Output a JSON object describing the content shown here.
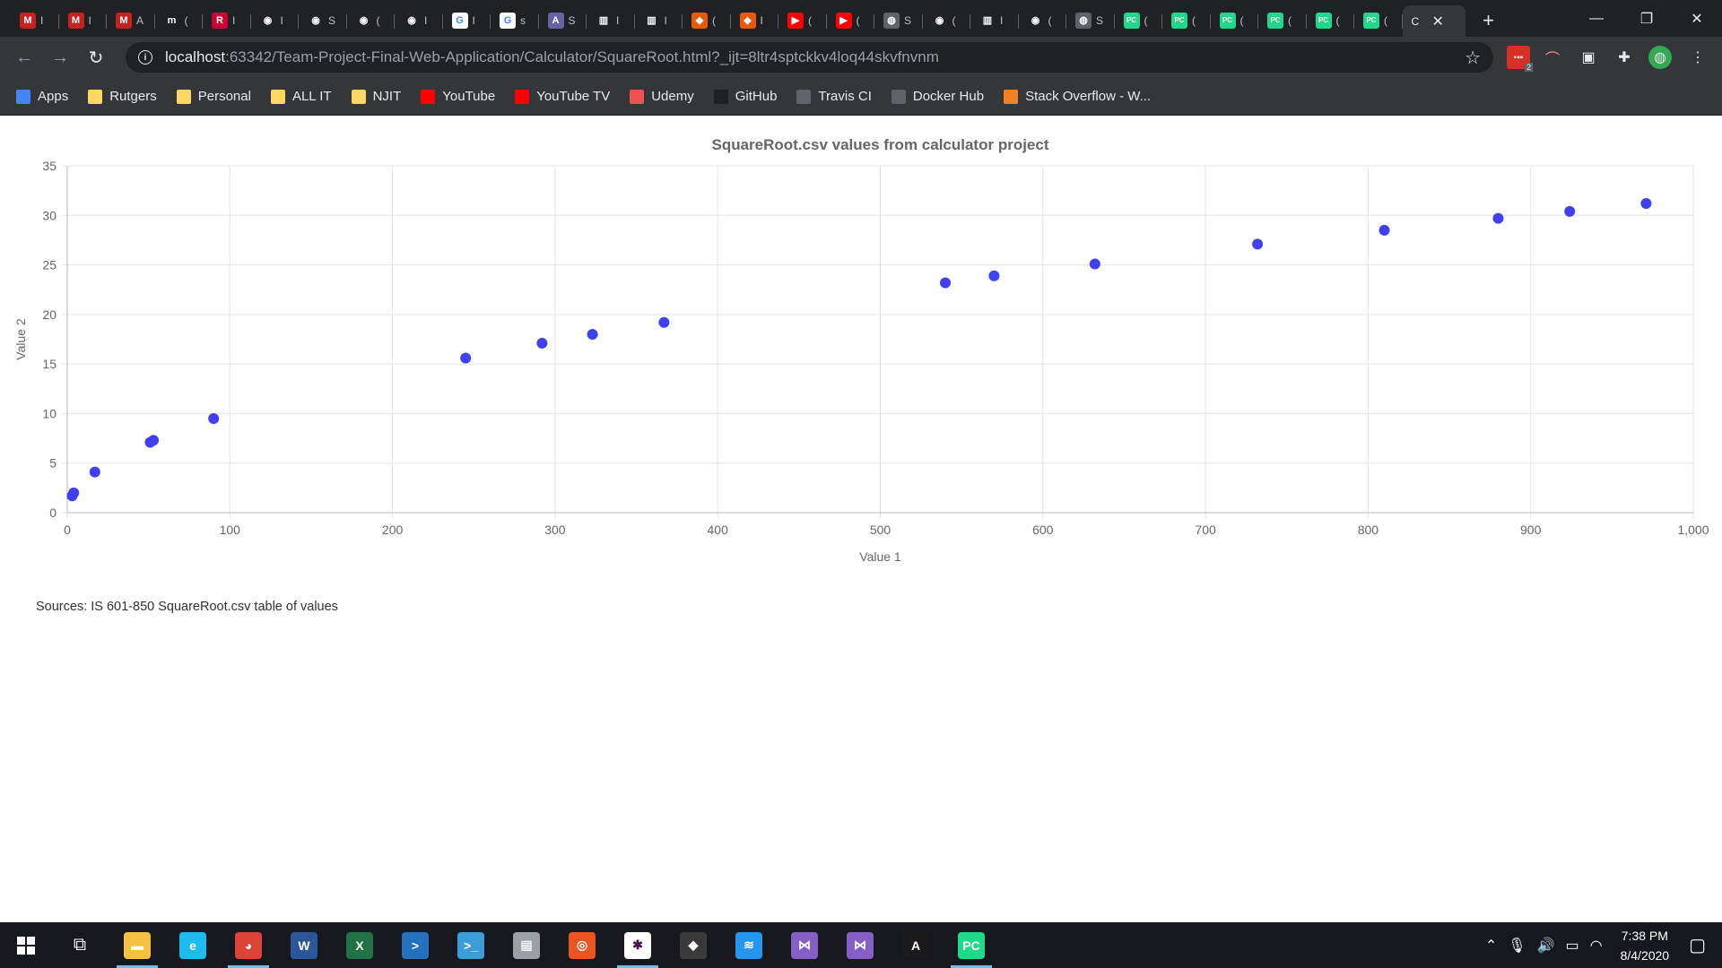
{
  "browser": {
    "tabs": [
      {
        "label": "I",
        "icon": "gmail-icon",
        "color": "#c5221f",
        "glyph": "M"
      },
      {
        "label": "I",
        "icon": "gmail-icon",
        "color": "#c5221f",
        "glyph": "M"
      },
      {
        "label": "A",
        "icon": "gmail-icon",
        "color": "#c5221f",
        "glyph": "M"
      },
      {
        "label": "(",
        "icon": "monster-icon",
        "color": "#202124",
        "glyph": "m"
      },
      {
        "label": "I",
        "icon": "rutgers-icon",
        "color": "#cc0033",
        "glyph": "R"
      },
      {
        "label": "I",
        "icon": "github-icon",
        "color": "#202124",
        "glyph": "◉"
      },
      {
        "label": "S",
        "icon": "github-icon",
        "color": "#202124",
        "glyph": "◉"
      },
      {
        "label": "(",
        "icon": "github-icon",
        "color": "#202124",
        "glyph": "◉"
      },
      {
        "label": "I",
        "icon": "github-icon",
        "color": "#202124",
        "glyph": "◉"
      },
      {
        "label": "I",
        "icon": "google-icon",
        "color": "#ffffff",
        "glyph": "G"
      },
      {
        "label": "s",
        "icon": "google-icon",
        "color": "#ffffff",
        "glyph": "G"
      },
      {
        "label": "S",
        "icon": "heroku-icon",
        "color": "#6762a6",
        "glyph": "A"
      },
      {
        "label": "I",
        "icon": "book-icon",
        "color": "#202124",
        "glyph": "▥"
      },
      {
        "label": "I",
        "icon": "book-icon",
        "color": "#202124",
        "glyph": "▥"
      },
      {
        "label": "(",
        "icon": "shield-icon",
        "color": "#e8590c",
        "glyph": "◆"
      },
      {
        "label": "I",
        "icon": "shield-icon",
        "color": "#e8590c",
        "glyph": "◆"
      },
      {
        "label": "(",
        "icon": "youtube-icon",
        "color": "#ff0000",
        "glyph": "▶"
      },
      {
        "label": "(",
        "icon": "youtube-icon",
        "color": "#ff0000",
        "glyph": "▶"
      },
      {
        "label": "S",
        "icon": "globe-icon",
        "color": "#5f6368",
        "glyph": "◍"
      },
      {
        "label": "(",
        "icon": "github-icon",
        "color": "#202124",
        "glyph": "◉"
      },
      {
        "label": "I",
        "icon": "book-icon",
        "color": "#202124",
        "glyph": "▥"
      },
      {
        "label": "(",
        "icon": "github-icon",
        "color": "#202124",
        "glyph": "◉"
      },
      {
        "label": "S",
        "icon": "globe-icon",
        "color": "#5f6368",
        "glyph": "◍"
      },
      {
        "label": "(",
        "icon": "pycharm-icon",
        "color": "#21d789",
        "glyph": "PC"
      },
      {
        "label": "(",
        "icon": "pycharm-icon",
        "color": "#21d789",
        "glyph": "PC"
      },
      {
        "label": "(",
        "icon": "pycharm-icon",
        "color": "#21d789",
        "glyph": "PC"
      },
      {
        "label": "(",
        "icon": "pycharm-icon",
        "color": "#21d789",
        "glyph": "PC"
      },
      {
        "label": "(",
        "icon": "pycharm-icon",
        "color": "#21d789",
        "glyph": "PC"
      },
      {
        "label": "(",
        "icon": "pycharm-icon",
        "color": "#21d789",
        "glyph": "PC"
      }
    ],
    "active_tab_label": "C",
    "url_host": "localhost",
    "url_rest": ":63342/Team-Project-Final-Web-Application/Calculator/SquareRoot.html?_ijt=8ltr4sptckkv4loq44skvfnvnm",
    "ext_badge": "2"
  },
  "bookmarks": [
    {
      "label": "Apps",
      "icon": "apps-grid-icon",
      "color": "#4285f4"
    },
    {
      "label": "Rutgers",
      "icon": "folder-icon",
      "color": "#fdd663"
    },
    {
      "label": "Personal",
      "icon": "folder-icon",
      "color": "#fdd663"
    },
    {
      "label": "ALL IT",
      "icon": "folder-icon",
      "color": "#fdd663"
    },
    {
      "label": "NJIT",
      "icon": "folder-icon",
      "color": "#fdd663"
    },
    {
      "label": "YouTube",
      "icon": "youtube-icon",
      "color": "#ff0000"
    },
    {
      "label": "YouTube TV",
      "icon": "youtube-icon",
      "color": "#ff0000"
    },
    {
      "label": "Udemy",
      "icon": "udemy-icon",
      "color": "#ec5252"
    },
    {
      "label": "GitHub",
      "icon": "github-icon",
      "color": "#202124"
    },
    {
      "label": "Travis CI",
      "icon": "globe-icon",
      "color": "#5f6368"
    },
    {
      "label": "Docker Hub",
      "icon": "globe-icon",
      "color": "#5f6368"
    },
    {
      "label": "Stack Overflow - W...",
      "icon": "stackoverflow-icon",
      "color": "#f48024"
    }
  ],
  "chart_data": {
    "type": "scatter",
    "title": "SquareRoot.csv values from calculator project",
    "xlabel": "Value 1",
    "ylabel": "Value 2",
    "xlim": [
      0,
      1000
    ],
    "ylim": [
      0,
      35
    ],
    "xticks": [
      "0",
      "100",
      "200",
      "300",
      "400",
      "500",
      "600",
      "700",
      "800",
      "900",
      "1,000"
    ],
    "yticks": [
      "0",
      "5",
      "10",
      "15",
      "20",
      "25",
      "30",
      "35"
    ],
    "grid": true,
    "point_color": "#4040ee",
    "points": [
      {
        "x": 3,
        "y": 1.7
      },
      {
        "x": 4,
        "y": 2.0
      },
      {
        "x": 17,
        "y": 4.1
      },
      {
        "x": 51,
        "y": 7.1
      },
      {
        "x": 53,
        "y": 7.3
      },
      {
        "x": 90,
        "y": 9.5
      },
      {
        "x": 245,
        "y": 15.6
      },
      {
        "x": 292,
        "y": 17.1
      },
      {
        "x": 323,
        "y": 18.0
      },
      {
        "x": 367,
        "y": 19.2
      },
      {
        "x": 540,
        "y": 23.2
      },
      {
        "x": 570,
        "y": 23.9
      },
      {
        "x": 632,
        "y": 25.1
      },
      {
        "x": 732,
        "y": 27.1
      },
      {
        "x": 810,
        "y": 28.5
      },
      {
        "x": 880,
        "y": 29.7
      },
      {
        "x": 924,
        "y": 30.4
      },
      {
        "x": 971,
        "y": 31.2
      }
    ]
  },
  "sources_text": "Sources: IS 601-850 SquareRoot.csv table of values",
  "taskbar": {
    "apps": [
      {
        "icon": "file-explorer-icon",
        "color": "#f4c142",
        "glyph": "▬"
      },
      {
        "icon": "internet-explorer-icon",
        "color": "#1ebbee",
        "glyph": "e"
      },
      {
        "icon": "chrome-icon",
        "color": "#db4437",
        "glyph": "◕"
      },
      {
        "icon": "word-icon",
        "color": "#2b579a",
        "glyph": "W"
      },
      {
        "icon": "excel-icon",
        "color": "#217346",
        "glyph": "X"
      },
      {
        "icon": "powershell-icon",
        "color": "#2671be",
        "glyph": ">"
      },
      {
        "icon": "azure-cli-icon",
        "color": "#3b9ed8",
        "glyph": ">_"
      },
      {
        "icon": "file-manager-icon",
        "color": "#9aa0a6",
        "glyph": "▤"
      },
      {
        "icon": "ubuntu-icon",
        "color": "#e95420",
        "glyph": "◎"
      },
      {
        "icon": "slack-icon",
        "color": "#ffffff",
        "glyph": "✱"
      },
      {
        "icon": "git-icon",
        "color": "#3a3a3a",
        "glyph": "◆"
      },
      {
        "icon": "docker-icon",
        "color": "#2496ed",
        "glyph": "≋"
      },
      {
        "icon": "visual-studio-icon",
        "color": "#865fc5",
        "glyph": "⋈"
      },
      {
        "icon": "visual-studio-icon",
        "color": "#865fc5",
        "glyph": "⋈"
      },
      {
        "icon": "acrobat-icon",
        "color": "#1a1a1a",
        "glyph": "A"
      },
      {
        "icon": "pycharm-icon",
        "color": "#21d789",
        "glyph": "PC"
      }
    ],
    "time": "7:38 PM",
    "date": "8/4/2020"
  }
}
